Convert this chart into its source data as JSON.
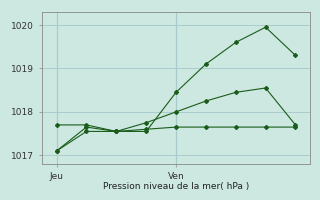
{
  "bg_color": "#cce8e0",
  "grid_color": "#aacccc",
  "line_color": "#1a5c1a",
  "xlabel": "Pression niveau de la mer( hPa )",
  "ylim": [
    1016.8,
    1020.3
  ],
  "yticks": [
    1017,
    1018,
    1019,
    1020
  ],
  "x_tick_labels": [
    "Jeu",
    "Ven"
  ],
  "x_tick_positions": [
    0,
    4
  ],
  "xlim": [
    -0.5,
    8.5
  ],
  "series1_x": [
    0,
    1,
    2,
    3,
    4,
    5,
    6,
    7,
    8
  ],
  "series1_y": [
    1017.1,
    1017.65,
    1017.55,
    1017.55,
    1018.45,
    1019.1,
    1019.6,
    1019.95,
    1019.3
  ],
  "series2_x": [
    0,
    1,
    2,
    3,
    4,
    5,
    6,
    7,
    8
  ],
  "series2_y": [
    1017.7,
    1017.7,
    1017.55,
    1017.75,
    1018.0,
    1018.25,
    1018.45,
    1018.55,
    1017.7
  ],
  "series3_x": [
    0,
    1,
    2,
    3,
    4,
    5,
    6,
    7,
    8
  ],
  "series3_y": [
    1017.1,
    1017.55,
    1017.55,
    1017.6,
    1017.65,
    1017.65,
    1017.65,
    1017.65,
    1017.65
  ],
  "label_fontsize": 6.5,
  "tick_fontsize": 6.5
}
